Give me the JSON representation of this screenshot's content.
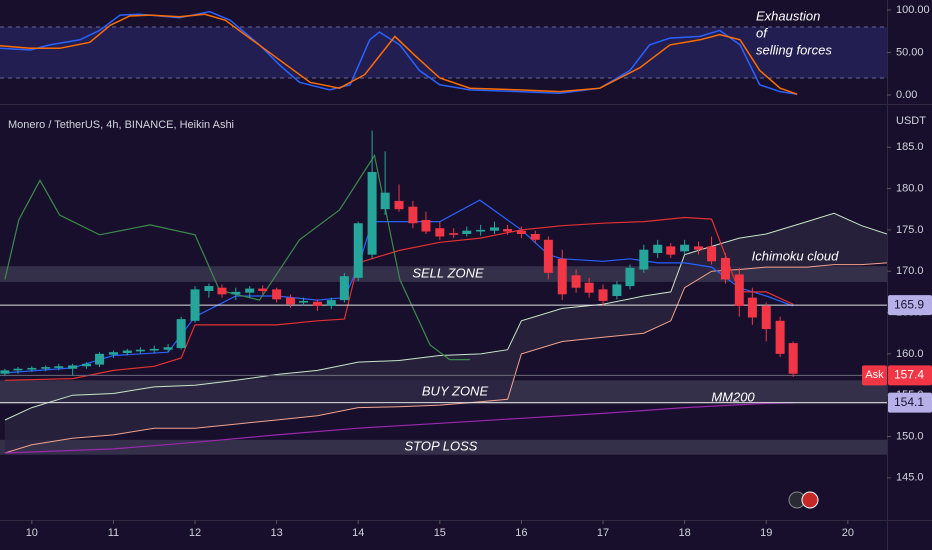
{
  "chart_data": [
    {
      "type": "line",
      "ylim": [
        -9.4,
        111.8
      ],
      "yticks": [
        {
          "value": 0,
          "label": "0.00"
        },
        {
          "value": 50,
          "label": "50.00"
        },
        {
          "value": 100,
          "label": "100.00"
        }
      ],
      "xlim": [
        9.61,
        20.48
      ],
      "band": [
        20,
        80
      ],
      "band_color": "#221e52",
      "grid": false,
      "annotations": [
        "Exhaustion",
        "of",
        "selling forces"
      ],
      "series": [
        {
          "color": "#2962ff",
          "x": [
            9.61,
            9.98,
            10.22,
            10.59,
            10.83,
            11.08,
            11.32,
            11.81,
            12.18,
            12.43,
            12.79,
            13.04,
            13.28,
            13.65,
            13.9,
            14.14,
            14.26,
            14.51,
            14.75,
            15.0,
            15.37,
            15.98,
            16.47,
            16.96,
            17.33,
            17.57,
            17.82,
            18.19,
            18.43,
            18.68,
            18.92,
            19.17,
            19.38
          ],
          "values": [
            55,
            53,
            59,
            65,
            76,
            94,
            95,
            91,
            98,
            88,
            59,
            35,
            15,
            6,
            12,
            65,
            74,
            59,
            29,
            12,
            6,
            4,
            2,
            8,
            29,
            59,
            67,
            69,
            76,
            59,
            12,
            4,
            1
          ]
        },
        {
          "color": "#ff6d00",
          "x": [
            9.61,
            9.98,
            10.34,
            10.71,
            10.96,
            11.2,
            11.45,
            11.81,
            12.12,
            12.37,
            12.67,
            13.04,
            13.41,
            13.77,
            14.08,
            14.45,
            14.69,
            15.0,
            15.37,
            15.98,
            16.47,
            16.96,
            17.45,
            17.82,
            18.19,
            18.43,
            18.68,
            18.92,
            19.17,
            19.38
          ],
          "values": [
            58,
            55,
            55,
            62,
            82,
            93,
            94,
            92,
            95,
            88,
            67,
            41,
            15,
            8,
            24,
            69,
            47,
            20,
            8,
            6,
            4,
            8,
            32,
            59,
            65,
            71,
            65,
            29,
            8,
            1
          ]
        }
      ]
    },
    {
      "type": "candlestick",
      "title": "Monero / TetherUS, 4h, BINANCE, Heikin Ashi",
      "y_unit": "USDT",
      "xlim": [
        9.61,
        20.48
      ],
      "xticks": [
        10,
        11,
        12,
        13,
        14,
        15,
        16,
        17,
        18,
        19,
        20
      ],
      "ylim": [
        139.9,
        189.5
      ],
      "yticks": [
        {
          "value": 145,
          "label": "145.0"
        },
        {
          "value": 150,
          "label": "150.0"
        },
        {
          "value": 155,
          "label": "155.0"
        },
        {
          "value": 160,
          "label": "160.0"
        },
        {
          "value": 165,
          "label": "165.0"
        },
        {
          "value": 170,
          "label": "170.0"
        },
        {
          "value": 175,
          "label": "175.0"
        },
        {
          "value": 180,
          "label": "180.0"
        },
        {
          "value": 185,
          "label": "185.0"
        }
      ],
      "grid": false,
      "up_color": "#26a69a",
      "down_color": "#f23645",
      "x": [
        9.67,
        9.83,
        10.0,
        10.17,
        10.33,
        10.5,
        10.67,
        10.83,
        11.0,
        11.17,
        11.33,
        11.5,
        11.67,
        11.83,
        12.0,
        12.17,
        12.33,
        12.5,
        12.67,
        12.83,
        13.0,
        13.17,
        13.33,
        13.5,
        13.67,
        13.83,
        14.0,
        14.17,
        14.33,
        14.5,
        14.67,
        14.83,
        15.0,
        15.17,
        15.33,
        15.5,
        15.67,
        15.83,
        16.0,
        16.17,
        16.33,
        16.5,
        16.67,
        16.83,
        17.0,
        17.17,
        17.33,
        17.5,
        17.67,
        17.83,
        18.0,
        18.17,
        18.33,
        18.5,
        18.67,
        18.83,
        19.0,
        19.17,
        19.33
      ],
      "open": [
        157.6,
        158.0,
        158.1,
        158.2,
        158.3,
        158.2,
        158.5,
        158.7,
        159.9,
        160.1,
        160.3,
        160.4,
        160.5,
        160.7,
        164.0,
        167.6,
        168.0,
        167.2,
        167.4,
        167.9,
        167.8,
        166.8,
        166.2,
        166.3,
        165.8,
        166.5,
        169.2,
        172.0,
        177.5,
        178.5,
        177.8,
        176.2,
        175.2,
        174.6,
        174.5,
        174.8,
        174.9,
        175.1,
        174.9,
        174.5,
        173.8,
        171.5,
        169.5,
        168.6,
        167.8,
        167.0,
        168.2,
        170.2,
        172.2,
        173.0,
        172.4,
        173.0,
        173.0,
        171.6,
        169.6,
        166.8,
        165.8,
        164.0,
        161.3
      ],
      "high": [
        158.2,
        158.4,
        158.5,
        158.6,
        158.8,
        158.8,
        159.0,
        160.2,
        160.4,
        160.6,
        160.8,
        161.0,
        161.2,
        164.5,
        168.2,
        168.5,
        168.4,
        168.0,
        168.2,
        168.3,
        168.0,
        167.2,
        166.8,
        166.6,
        166.8,
        169.8,
        176.0,
        187.0,
        184.5,
        180.5,
        178.5,
        177.2,
        176.0,
        175.2,
        175.4,
        175.6,
        176.0,
        175.6,
        175.4,
        174.9,
        174.2,
        172.6,
        170.2,
        169.2,
        168.4,
        168.8,
        170.8,
        173.2,
        173.8,
        173.4,
        173.8,
        173.6,
        174.2,
        172.2,
        170.4,
        168.0,
        166.2,
        164.5,
        161.5
      ],
      "low": [
        157.3,
        157.6,
        157.8,
        157.9,
        158.0,
        157.4,
        158.2,
        158.4,
        159.5,
        159.8,
        160.0,
        160.1,
        160.2,
        160.5,
        163.8,
        166.8,
        166.8,
        166.5,
        166.8,
        167.2,
        166.2,
        165.6,
        165.8,
        165.2,
        165.4,
        166.2,
        168.8,
        171.5,
        176.8,
        177.2,
        175.2,
        174.5,
        173.8,
        174.0,
        174.2,
        174.3,
        174.5,
        174.4,
        174.0,
        173.4,
        169.0,
        166.5,
        167.4,
        166.8,
        165.8,
        166.6,
        167.8,
        169.8,
        171.6,
        171.6,
        172.0,
        172.0,
        170.8,
        168.5,
        164.5,
        163.5,
        161.5,
        159.6,
        157.2
      ],
      "close": [
        158.0,
        158.2,
        158.3,
        158.4,
        158.5,
        158.6,
        158.8,
        160.0,
        160.2,
        160.4,
        160.5,
        160.6,
        160.8,
        164.2,
        167.8,
        168.2,
        167.2,
        167.5,
        167.9,
        167.6,
        166.6,
        166.0,
        166.4,
        165.8,
        166.5,
        169.4,
        175.8,
        182.0,
        179.5,
        177.5,
        175.8,
        174.8,
        174.2,
        174.4,
        174.9,
        175.0,
        175.3,
        174.8,
        174.5,
        173.8,
        169.8,
        167.2,
        168.0,
        167.4,
        166.4,
        168.4,
        170.4,
        172.6,
        173.2,
        172.0,
        173.2,
        172.6,
        171.2,
        169.0,
        165.8,
        164.4,
        163.0,
        160.0,
        157.6
      ],
      "cloud": {
        "fill": "#2a2440",
        "upper_color": "#c8e6c9",
        "lower_color": "#f4a38c",
        "x": [
          9.67,
          10.0,
          10.5,
          11.0,
          11.5,
          12.0,
          12.5,
          13.0,
          13.5,
          14.0,
          14.5,
          15.0,
          15.5,
          15.83,
          16.0,
          16.5,
          17.0,
          17.5,
          17.83,
          18.0,
          18.33,
          18.67,
          19.0,
          19.5,
          19.83,
          20.17,
          20.48
        ],
        "upper": [
          152.0,
          153.5,
          155.0,
          155.2,
          156.0,
          156.2,
          156.8,
          157.5,
          158.0,
          159.0,
          159.2,
          159.8,
          160.0,
          160.5,
          164.0,
          165.5,
          166.0,
          167.0,
          167.5,
          172.0,
          173.0,
          174.0,
          174.5,
          176.0,
          177.0,
          175.5,
          174.5
        ],
        "lower": [
          148.0,
          149.0,
          149.8,
          150.2,
          151.0,
          151.0,
          151.5,
          152.0,
          152.5,
          153.5,
          153.6,
          153.8,
          154.2,
          154.5,
          160.0,
          161.5,
          162.0,
          162.5,
          164.0,
          168.0,
          170.0,
          170.2,
          170.5,
          170.5,
          170.8,
          170.8,
          171.0
        ]
      },
      "overlays": [
        {
          "color": "#2962ff",
          "x": [
            9.67,
            10.5,
            11.0,
            11.67,
            12.0,
            12.5,
            13.0,
            13.5,
            13.83,
            14.0,
            14.17,
            15.0,
            15.49,
            16.0,
            16.33,
            16.5,
            17.0,
            17.33,
            17.67,
            18.0,
            18.33,
            18.67,
            19.0,
            19.33
          ],
          "values": [
            157.7,
            158.3,
            159.8,
            160.2,
            164.5,
            167.0,
            167.0,
            166.5,
            166.8,
            170.5,
            176.0,
            176.0,
            178.6,
            175.0,
            172.0,
            171.5,
            171.2,
            171.5,
            171.0,
            171.0,
            170.5,
            168.0,
            167.0,
            165.8
          ]
        },
        {
          "color": "#e03131",
          "x": [
            9.67,
            10.5,
            11.0,
            11.5,
            11.83,
            12.0,
            12.5,
            13.0,
            13.5,
            13.83,
            14.0,
            14.5,
            15.0,
            15.5,
            16.0,
            16.5,
            17.0,
            17.5,
            18.0,
            18.33,
            18.67,
            19.0,
            19.33
          ],
          "values": [
            156.8,
            157.0,
            158.0,
            158.5,
            159.5,
            163.5,
            163.5,
            163.5,
            164.0,
            164.2,
            171.0,
            172.5,
            173.5,
            174.0,
            175.0,
            175.5,
            175.8,
            176.0,
            176.5,
            176.3,
            167.5,
            167.5,
            166.0
          ]
        },
        {
          "color": "#3c8a4c",
          "x": [
            9.67,
            9.84,
            10.1,
            10.34,
            10.83,
            11.45,
            12.0,
            12.3,
            12.79,
            13.28,
            13.77,
            14.2,
            14.51,
            14.88,
            15.12,
            15.37
          ],
          "values": [
            169.0,
            176.2,
            181.0,
            176.8,
            174.4,
            175.6,
            174.4,
            167.7,
            166.5,
            173.8,
            177.4,
            184.0,
            169.0,
            161.1,
            159.3,
            159.3
          ]
        },
        {
          "color": "#9c27b0",
          "x": [
            9.67,
            11.0,
            12.0,
            13.0,
            14.0,
            15.0,
            16.0,
            17.0,
            18.0,
            19.0,
            19.33
          ],
          "values": [
            148.0,
            148.5,
            149.3,
            150.2,
            151.0,
            151.6,
            152.2,
            152.8,
            153.5,
            154.0,
            154.1
          ]
        }
      ],
      "zones": [
        {
          "label": "SELL ZONE",
          "from": 168.7,
          "to": 170.6,
          "color": "#3b3650"
        },
        {
          "label": "BUY ZONE",
          "from": 153.9,
          "to": 156.8,
          "color": "#3b3650"
        },
        {
          "label": "STOP LOSS",
          "from": 147.8,
          "to": 149.6,
          "color": "#3b3650"
        }
      ],
      "price_lines": [
        {
          "value": 165.9,
          "color": "#b7b0e8",
          "line_color": "#e0e0e0"
        },
        {
          "value": 157.4,
          "tag": "Ask",
          "color": "#f23645",
          "line_color": "#6b6b7b"
        },
        {
          "value": 154.1,
          "color": "#b7b0e8",
          "line_color": "#e0e0e0"
        }
      ],
      "annotations": [
        "Ichimoku cloud",
        "MM200"
      ]
    }
  ]
}
